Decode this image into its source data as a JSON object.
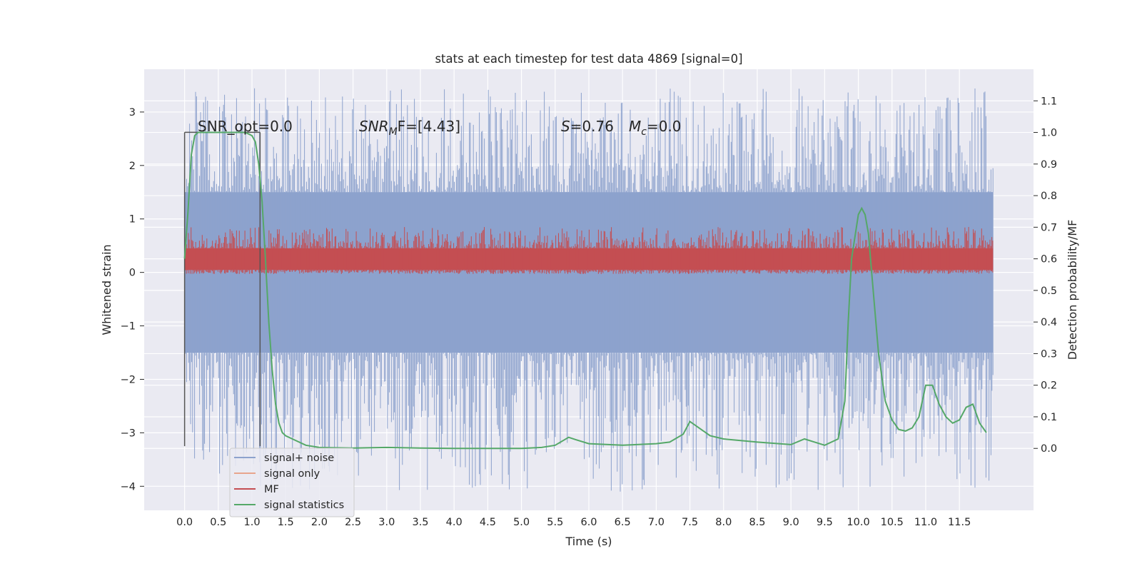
{
  "chart_data": {
    "type": "line",
    "title": "stats at each timestep for test data 4869 [signal=0]",
    "xlabel": "Time (s)",
    "ylabel_left": "Whitened strain",
    "ylabel_right": "Detection probability/MF",
    "xlim": [
      -0.6,
      12.6
    ],
    "ylim_left": [
      -4.45,
      3.8
    ],
    "ylim_right": [
      -0.196,
      1.2
    ],
    "x_ticks": [
      "0.0",
      "0.5",
      "1.0",
      "1.5",
      "2.0",
      "2.5",
      "3.0",
      "3.5",
      "4.0",
      "4.5",
      "5.0",
      "5.5",
      "6.0",
      "6.5",
      "7.0",
      "7.5",
      "8.0",
      "8.5",
      "9.0",
      "9.5",
      "10.0",
      "10.5",
      "11.0",
      "11.5"
    ],
    "y_ticks_left": [
      "−4",
      "−3",
      "−2",
      "−1",
      "0",
      "1",
      "2",
      "3"
    ],
    "y_ticks_right": [
      "0.0",
      "0.1",
      "0.2",
      "0.3",
      "0.4",
      "0.5",
      "0.6",
      "0.7",
      "0.8",
      "0.9",
      "1.0",
      "1.1"
    ],
    "grid": true,
    "legend_position": "bottom-left",
    "annotations": {
      "snr_opt": "SNR_opt=0.0",
      "snr_mf_main": "SNR",
      "snr_mf_sub": "M",
      "snr_mf_rest": "F=[4.43]",
      "s_main": "S",
      "s_rest": "=0.76",
      "mc_main": "M",
      "mc_sub": "c",
      "mc_rest": "=0.0"
    },
    "series": [
      {
        "name": "signal+ noise",
        "color": "#8da2cd",
        "axis": "left",
        "x_range": [
          0.0,
          12.0
        ],
        "band_range": [
          -1.5,
          1.5
        ],
        "extreme_range": [
          -4.1,
          3.45
        ]
      },
      {
        "name": "signal only",
        "color": "#e8a58d",
        "axis": "left",
        "values": []
      },
      {
        "name": "MF",
        "color": "#c44e52",
        "axis": "left",
        "x_range": [
          0.0,
          12.0
        ],
        "band_range": [
          0.0,
          0.6
        ],
        "extreme_range": [
          -0.05,
          0.85
        ]
      },
      {
        "name": "signal statistics",
        "color": "#55a868",
        "axis": "right",
        "x": [
          0.0,
          0.05,
          0.1,
          0.15,
          0.2,
          0.3,
          0.4,
          0.5,
          0.6,
          0.7,
          0.8,
          0.9,
          1.0,
          1.05,
          1.1,
          1.15,
          1.2,
          1.25,
          1.3,
          1.35,
          1.4,
          1.45,
          1.5,
          1.6,
          1.8,
          2.0,
          2.5,
          3.0,
          3.5,
          4.0,
          4.5,
          5.0,
          5.3,
          5.5,
          5.7,
          5.8,
          6.0,
          6.5,
          7.0,
          7.2,
          7.4,
          7.5,
          7.6,
          7.8,
          8.0,
          8.5,
          9.0,
          9.2,
          9.5,
          9.7,
          9.8,
          9.85,
          9.9,
          10.0,
          10.05,
          10.1,
          10.15,
          10.2,
          10.3,
          10.4,
          10.5,
          10.6,
          10.7,
          10.8,
          10.9,
          11.0,
          11.1,
          11.2,
          11.3,
          11.4,
          11.5,
          11.6,
          11.7,
          11.8,
          11.9
        ],
        "y": [
          0.6,
          0.75,
          0.93,
          0.99,
          1.0,
          1.0,
          1.0,
          1.0,
          1.0,
          1.0,
          1.0,
          1.0,
          0.99,
          0.97,
          0.9,
          0.78,
          0.6,
          0.4,
          0.25,
          0.14,
          0.08,
          0.05,
          0.04,
          0.03,
          0.01,
          0.003,
          0.001,
          0.003,
          0.001,
          0.0,
          0.0,
          0.0,
          0.003,
          0.01,
          0.035,
          0.028,
          0.015,
          0.01,
          0.015,
          0.02,
          0.045,
          0.085,
          0.07,
          0.04,
          0.03,
          0.02,
          0.012,
          0.03,
          0.01,
          0.03,
          0.15,
          0.4,
          0.6,
          0.74,
          0.76,
          0.74,
          0.68,
          0.55,
          0.3,
          0.15,
          0.09,
          0.06,
          0.055,
          0.065,
          0.1,
          0.2,
          0.2,
          0.14,
          0.1,
          0.08,
          0.09,
          0.13,
          0.14,
          0.08,
          0.05
        ]
      }
    ],
    "markers": [
      {
        "x": 0.0,
        "y_range": [
          -3.25,
          2.62
        ]
      },
      {
        "x": 1.12,
        "y_range": [
          -3.25,
          2.62
        ]
      }
    ]
  }
}
